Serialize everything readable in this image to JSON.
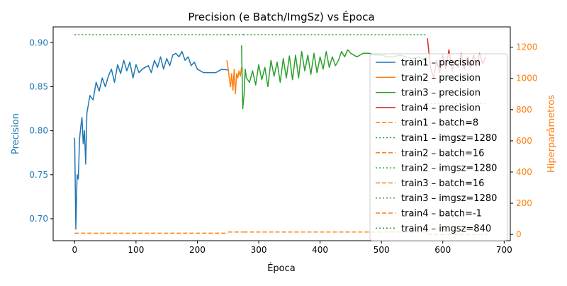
{
  "chart_data": {
    "type": "line",
    "title": "Precision (e Batch/ImgSz) vs Época",
    "xlabel": "Época",
    "ylabel": "Precision",
    "y2label": "Hiperparâmetros",
    "xlim": [
      -35,
      710
    ],
    "ylim": [
      0.675,
      0.918
    ],
    "y2lim": [
      -40,
      1330
    ],
    "xticks": [
      0,
      100,
      200,
      300,
      400,
      500,
      600,
      700
    ],
    "yticks": [
      0.7,
      0.75,
      0.8,
      0.85,
      0.9
    ],
    "ytick_labels": [
      "0.70",
      "0.75",
      "0.80",
      "0.85",
      "0.90"
    ],
    "y2ticks": [
      0,
      200,
      400,
      600,
      800,
      1000,
      1200
    ],
    "legend_position": "center-right",
    "grid": false,
    "colors": {
      "precision_axis": "#1f77b4",
      "hyper_axis": "#ff7f0e",
      "train1": "#1f77b4",
      "train2": "#ff7f0e",
      "train3": "#2ca02c",
      "train4": "#d62728"
    },
    "series": [
      {
        "name": "train1 – precision",
        "axis": "left",
        "style": "solid",
        "color": "#1f77b4",
        "x": [
          0,
          2,
          4,
          6,
          8,
          10,
          12,
          14,
          16,
          18,
          20,
          25,
          30,
          35,
          40,
          45,
          50,
          55,
          60,
          65,
          70,
          75,
          80,
          85,
          90,
          95,
          100,
          105,
          110,
          115,
          120,
          125,
          130,
          135,
          140,
          145,
          150,
          155,
          160,
          165,
          170,
          175,
          180,
          185,
          190,
          195,
          200,
          210,
          220,
          230,
          240,
          250
        ],
        "y": [
          0.792,
          0.688,
          0.75,
          0.745,
          0.79,
          0.805,
          0.815,
          0.785,
          0.8,
          0.762,
          0.82,
          0.84,
          0.835,
          0.855,
          0.845,
          0.86,
          0.85,
          0.862,
          0.87,
          0.855,
          0.875,
          0.865,
          0.88,
          0.868,
          0.878,
          0.86,
          0.875,
          0.866,
          0.87,
          0.872,
          0.874,
          0.866,
          0.88,
          0.872,
          0.884,
          0.87,
          0.882,
          0.874,
          0.886,
          0.888,
          0.884,
          0.89,
          0.88,
          0.884,
          0.874,
          0.878,
          0.87,
          0.866,
          0.866,
          0.866,
          0.87,
          0.869
        ]
      },
      {
        "name": "train2 – precision",
        "axis": "left",
        "style": "solid",
        "color": "#ff7f0e",
        "x": [
          248,
          250,
          252,
          254,
          256,
          258,
          260,
          262,
          264,
          266,
          268,
          270,
          272,
          274
        ],
        "y": [
          0.88,
          0.872,
          0.86,
          0.85,
          0.865,
          0.846,
          0.87,
          0.842,
          0.865,
          0.86,
          0.868,
          0.862,
          0.872,
          0.87
        ]
      },
      {
        "name": "train3 – precision",
        "axis": "left",
        "style": "solid",
        "color": "#2ca02c",
        "x": [
          272,
          274,
          276,
          278,
          280,
          285,
          290,
          295,
          300,
          305,
          310,
          315,
          320,
          325,
          330,
          335,
          340,
          345,
          350,
          355,
          360,
          365,
          370,
          375,
          380,
          385,
          390,
          395,
          400,
          405,
          410,
          415,
          420,
          425,
          430,
          435,
          440,
          445,
          450,
          460,
          470,
          480,
          490,
          500,
          510,
          520,
          530,
          540,
          550,
          560,
          570,
          575
        ],
        "y": [
          0.897,
          0.825,
          0.84,
          0.87,
          0.86,
          0.855,
          0.868,
          0.852,
          0.875,
          0.858,
          0.872,
          0.85,
          0.88,
          0.862,
          0.878,
          0.855,
          0.882,
          0.86,
          0.885,
          0.858,
          0.886,
          0.86,
          0.89,
          0.868,
          0.886,
          0.864,
          0.888,
          0.866,
          0.884,
          0.87,
          0.89,
          0.872,
          0.884,
          0.874,
          0.88,
          0.89,
          0.884,
          0.892,
          0.888,
          0.884,
          0.888,
          0.888,
          0.886,
          0.886,
          0.884,
          0.884,
          0.886,
          0.884,
          0.882,
          0.884,
          0.88,
          0.884
        ]
      },
      {
        "name": "train4 – precision",
        "axis": "left",
        "style": "solid",
        "color": "#d62728",
        "x": [
          575,
          580,
          585,
          590,
          595,
          600,
          605,
          610,
          615,
          620,
          625,
          630,
          635,
          640,
          645,
          650,
          655,
          660,
          665,
          670
        ],
        "y": [
          0.905,
          0.872,
          0.86,
          0.88,
          0.866,
          0.886,
          0.87,
          0.892,
          0.868,
          0.88,
          0.872,
          0.888,
          0.87,
          0.884,
          0.872,
          0.886,
          0.874,
          0.888,
          0.876,
          0.884
        ]
      },
      {
        "name": "train1 – batch=8",
        "axis": "right",
        "style": "dashed",
        "color": "#ff7f0e",
        "x": [
          0,
          250
        ],
        "y": [
          8,
          8
        ]
      },
      {
        "name": "train1 – imgsz=1280",
        "axis": "right",
        "style": "dotted",
        "color": "#2ca02c",
        "x": [
          0,
          250
        ],
        "y": [
          1280,
          1280
        ]
      },
      {
        "name": "train2 – batch=16",
        "axis": "right",
        "style": "dashed",
        "color": "#ff7f0e",
        "x": [
          250,
          275
        ],
        "y": [
          16,
          16
        ]
      },
      {
        "name": "train2 – imgsz=1280",
        "axis": "right",
        "style": "dotted",
        "color": "#2ca02c",
        "x": [
          250,
          275
        ],
        "y": [
          1280,
          1280
        ]
      },
      {
        "name": "train3 – batch=16",
        "axis": "right",
        "style": "dashed",
        "color": "#ff7f0e",
        "x": [
          275,
          575
        ],
        "y": [
          16,
          16
        ]
      },
      {
        "name": "train3 – imgsz=1280",
        "axis": "right",
        "style": "dotted",
        "color": "#2ca02c",
        "x": [
          275,
          575
        ],
        "y": [
          1280,
          1280
        ]
      },
      {
        "name": "train4 – batch=-1",
        "axis": "right",
        "style": "dashed",
        "color": "#ff7f0e",
        "x": [
          575,
          672
        ],
        "y": [
          -1,
          -1
        ]
      },
      {
        "name": "train4 – imgsz=840",
        "axis": "right",
        "style": "dotted",
        "color": "#2ca02c",
        "x": [
          575,
          672
        ],
        "y": [
          840,
          840
        ]
      }
    ]
  }
}
